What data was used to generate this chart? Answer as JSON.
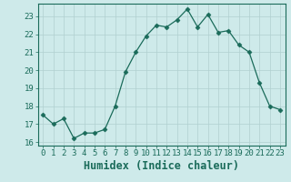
{
  "x": [
    0,
    1,
    2,
    3,
    4,
    5,
    6,
    7,
    8,
    9,
    10,
    11,
    12,
    13,
    14,
    15,
    16,
    17,
    18,
    19,
    20,
    21,
    22,
    23
  ],
  "y": [
    17.5,
    17.0,
    17.3,
    16.2,
    16.5,
    16.5,
    16.7,
    18.0,
    19.9,
    21.0,
    21.9,
    22.5,
    22.4,
    22.8,
    23.4,
    22.4,
    23.1,
    22.1,
    22.2,
    21.4,
    21.0,
    19.3,
    18.0,
    17.8
  ],
  "line_color": "#1a6b5a",
  "marker": "D",
  "marker_size": 2.5,
  "bg_color": "#ceeaea",
  "grid_color": "#b0d0d0",
  "xlabel": "Humidex (Indice chaleur)",
  "ylim": [
    15.8,
    23.7
  ],
  "xlim": [
    -0.5,
    23.5
  ],
  "yticks": [
    16,
    17,
    18,
    19,
    20,
    21,
    22,
    23
  ],
  "xticks": [
    0,
    1,
    2,
    3,
    4,
    5,
    6,
    7,
    8,
    9,
    10,
    11,
    12,
    13,
    14,
    15,
    16,
    17,
    18,
    19,
    20,
    21,
    22,
    23
  ],
  "tick_color": "#1a6b5a",
  "font_color": "#1a6b5a",
  "tick_fontsize": 6.5,
  "xlabel_fontsize": 8.5
}
